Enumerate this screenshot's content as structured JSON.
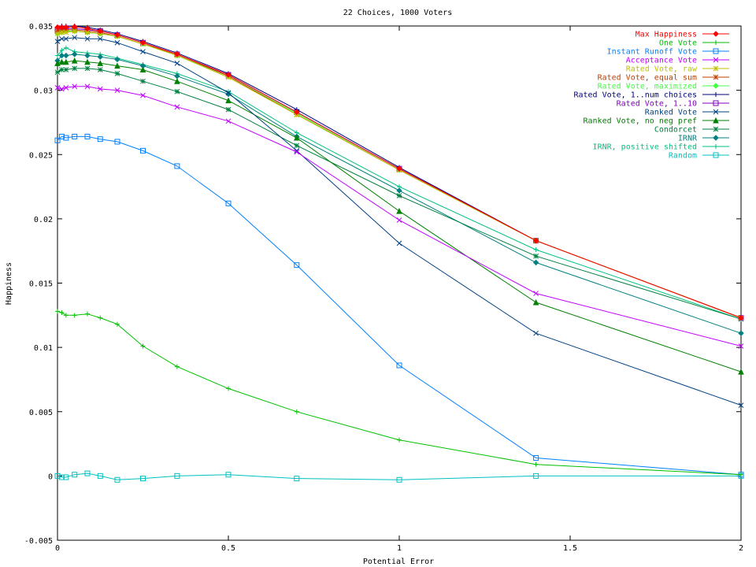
{
  "chart_data": {
    "type": "line",
    "title": "22 Choices, 1000 Voters",
    "xlabel": "Potential Error",
    "ylabel": "Happiness",
    "xlim": [
      0,
      2
    ],
    "ylim": [
      -0.005,
      0.035
    ],
    "xticks": [
      "0",
      "0.5",
      "1",
      "1.5",
      "2"
    ],
    "yticks": [
      "-0.005",
      "0",
      "0.005",
      "0.01",
      "0.015",
      "0.02",
      "0.025",
      "0.03",
      "0.035"
    ],
    "grid": false,
    "legend_position": "top-right",
    "x": [
      0,
      0.0125,
      0.025,
      0.05,
      0.0875,
      0.125,
      0.175,
      0.25,
      0.35,
      0.5,
      0.7,
      1.0,
      1.4,
      2.0
    ],
    "series": [
      {
        "name": "Max Happiness",
        "color": "#ff0000",
        "marker": "diamond",
        "values": [
          0.0349,
          0.0349,
          0.0349,
          0.03495,
          0.0348,
          0.0346,
          0.0343,
          0.0337,
          0.0328,
          0.0312,
          0.0283,
          0.0239,
          0.0183,
          0.0123
        ]
      },
      {
        "name": "One Vote",
        "color": "#00c000",
        "marker": "plus",
        "values": [
          0.0128,
          0.0127,
          0.0125,
          0.0125,
          0.0126,
          0.0123,
          0.0118,
          0.0101,
          0.0085,
          0.0068,
          0.005,
          0.0028,
          0.0009,
          0.0001
        ]
      },
      {
        "name": "Instant Runoff Vote",
        "color": "#0080ff",
        "marker": "square",
        "values": [
          0.0261,
          0.0264,
          0.0263,
          0.0264,
          0.0264,
          0.0262,
          0.026,
          0.0253,
          0.0241,
          0.0212,
          0.0164,
          0.0086,
          0.0014,
          0.0001
        ]
      },
      {
        "name": "Acceptance Vote",
        "color": "#c000ff",
        "marker": "x",
        "values": [
          0.0302,
          0.0301,
          0.0302,
          0.0303,
          0.0303,
          0.0301,
          0.03,
          0.0296,
          0.0287,
          0.0276,
          0.0252,
          0.0199,
          0.0142,
          0.0101
        ]
      },
      {
        "name": "Rated Vote, raw",
        "color": "#c0c000",
        "marker": "star",
        "values": [
          0.0344,
          0.0345,
          0.0345,
          0.0346,
          0.0345,
          0.0344,
          0.0342,
          0.0336,
          0.0327,
          0.031,
          0.0281,
          0.0238,
          0.0183,
          0.0123
        ]
      },
      {
        "name": "Rated Vote, equal sum",
        "color": "#c04000",
        "marker": "star",
        "values": [
          0.0346,
          0.0347,
          0.0347,
          0.0347,
          0.0346,
          0.0345,
          0.0342,
          0.0336,
          0.0328,
          0.0311,
          0.0281,
          0.0238,
          0.0183,
          0.0123
        ]
      },
      {
        "name": "Rated Vote, maximized",
        "color": "#40ff40",
        "marker": "diamond",
        "values": [
          0.0344,
          0.0345,
          0.0346,
          0.0346,
          0.0345,
          0.0344,
          0.0342,
          0.0336,
          0.0327,
          0.0311,
          0.0282,
          0.0238,
          0.0183,
          0.0123
        ]
      },
      {
        "name": "Rated Vote, 1..num choices",
        "color": "#000080",
        "marker": "plus",
        "values": [
          0.0349,
          0.035,
          0.035,
          0.035,
          0.0349,
          0.0347,
          0.0344,
          0.0338,
          0.0329,
          0.0313,
          0.0285,
          0.024,
          0.0183,
          0.0123
        ]
      },
      {
        "name": "Rated Vote, 1..10",
        "color": "#8000c0",
        "marker": "square",
        "values": [
          0.0347,
          0.0348,
          0.0348,
          0.0348,
          0.0347,
          0.0346,
          0.0343,
          0.0337,
          0.0328,
          0.0312,
          0.0283,
          0.0239,
          0.0183,
          0.0123
        ]
      },
      {
        "name": "Ranked Vote",
        "color": "#004080",
        "marker": "x",
        "values": [
          0.0338,
          0.034,
          0.034,
          0.0341,
          0.034,
          0.034,
          0.0337,
          0.033,
          0.0321,
          0.0298,
          0.0253,
          0.0181,
          0.0111,
          0.0055
        ]
      },
      {
        "name": "Ranked Vote, no neg pref",
        "color": "#008000",
        "marker": "triangle",
        "values": [
          0.0321,
          0.0322,
          0.0322,
          0.0323,
          0.0322,
          0.0321,
          0.0319,
          0.0316,
          0.0307,
          0.0292,
          0.0263,
          0.0206,
          0.0135,
          0.0081
        ]
      },
      {
        "name": "Condorcet",
        "color": "#008040",
        "marker": "star",
        "values": [
          0.0314,
          0.0316,
          0.0316,
          0.0317,
          0.0317,
          0.0316,
          0.0313,
          0.0307,
          0.0299,
          0.0285,
          0.0257,
          0.0218,
          0.0171,
          0.0122
        ]
      },
      {
        "name": "IRNR",
        "color": "#008080",
        "marker": "diamond",
        "values": [
          0.0323,
          0.0327,
          0.0327,
          0.0328,
          0.0327,
          0.0326,
          0.0324,
          0.0319,
          0.0311,
          0.0297,
          0.0264,
          0.0222,
          0.0166,
          0.0111
        ]
      },
      {
        "name": "IRNR, positive shifted",
        "color": "#00c080",
        "marker": "plus",
        "values": [
          0.0327,
          0.0331,
          0.0333,
          0.033,
          0.0329,
          0.0328,
          0.0325,
          0.032,
          0.0313,
          0.0299,
          0.0267,
          0.0225,
          0.0176,
          0.0122
        ]
      },
      {
        "name": "Random",
        "color": "#00c0c0",
        "marker": "square",
        "values": [
          0.0,
          -0.0001,
          -0.0001,
          0.0001,
          0.0002,
          0.0,
          -0.0003,
          -0.0002,
          0.0,
          0.0001,
          -0.0002,
          -0.0003,
          0.0,
          0.0
        ]
      }
    ]
  }
}
